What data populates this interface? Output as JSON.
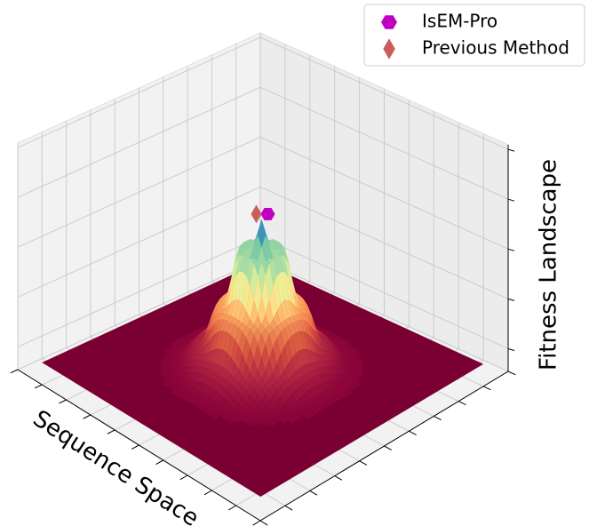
{
  "chart_data": {
    "type": "surface3d",
    "xlabel": "Sequence Space",
    "zlabel": "Fitness Landscape",
    "series": [
      {
        "name": "IsEM-Pro",
        "color": "#c000c0",
        "marker": "hexagon"
      },
      {
        "name": "Previous Method",
        "color": "#cd5c5c",
        "marker": "diamond"
      }
    ],
    "surface_base_color": "#7a0033",
    "grid": true,
    "legend": "upper right"
  }
}
